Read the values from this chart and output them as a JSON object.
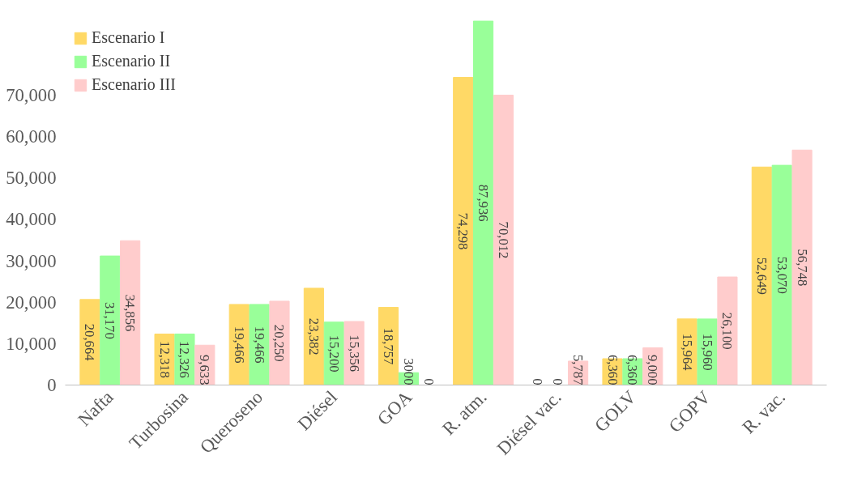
{
  "chart_data": {
    "type": "bar",
    "categories": [
      "Nafta",
      "Turbosina",
      "Queroseno",
      "Diésel",
      "GOA",
      "R. atm.",
      "Diésel vac.",
      "GOLV",
      "GOPV",
      "R. vac."
    ],
    "series": [
      {
        "name": "Escenario I",
        "color": "#ffd966",
        "values": [
          20664,
          12318,
          19466,
          23382,
          18757,
          74298,
          0,
          6360,
          15964,
          52649
        ],
        "value_labels": [
          "20,664",
          "12,318",
          "19,466",
          "23,382",
          "18,757",
          "74,298",
          "0",
          "6,360",
          "15,964",
          "52,649"
        ]
      },
      {
        "name": "Escenario II",
        "color": "#99ff99",
        "values": [
          31170,
          12326,
          19466,
          15200,
          3000,
          87936,
          0,
          6360,
          15960,
          53070
        ],
        "value_labels": [
          "31,170",
          "12,326",
          "19,466",
          "15,200",
          "3000",
          "87,936",
          "0",
          "6,360",
          "15,960",
          "53,070"
        ]
      },
      {
        "name": "Escenario III",
        "color": "#ffcccc",
        "values": [
          34856,
          9633,
          20250,
          15356,
          0,
          70012,
          5787,
          9000,
          26100,
          56748
        ],
        "value_labels": [
          "34,856",
          "9,633",
          "20,250",
          "15,356",
          "0",
          "70,012",
          "5,787",
          "9,000",
          "26,100",
          "56,748"
        ]
      }
    ],
    "ylim": [
      0,
      88000
    ],
    "yticks": [
      {
        "value": 0,
        "label": "0"
      },
      {
        "value": 10000,
        "label": "10,000"
      },
      {
        "value": 20000,
        "label": "20,000"
      },
      {
        "value": 30000,
        "label": "30,000"
      },
      {
        "value": 40000,
        "label": "40,000"
      },
      {
        "value": 50000,
        "label": "50,000"
      },
      {
        "value": 60000,
        "label": "60,000"
      },
      {
        "value": 70000,
        "label": "70,000"
      }
    ],
    "legend": "top left",
    "grid": false
  }
}
